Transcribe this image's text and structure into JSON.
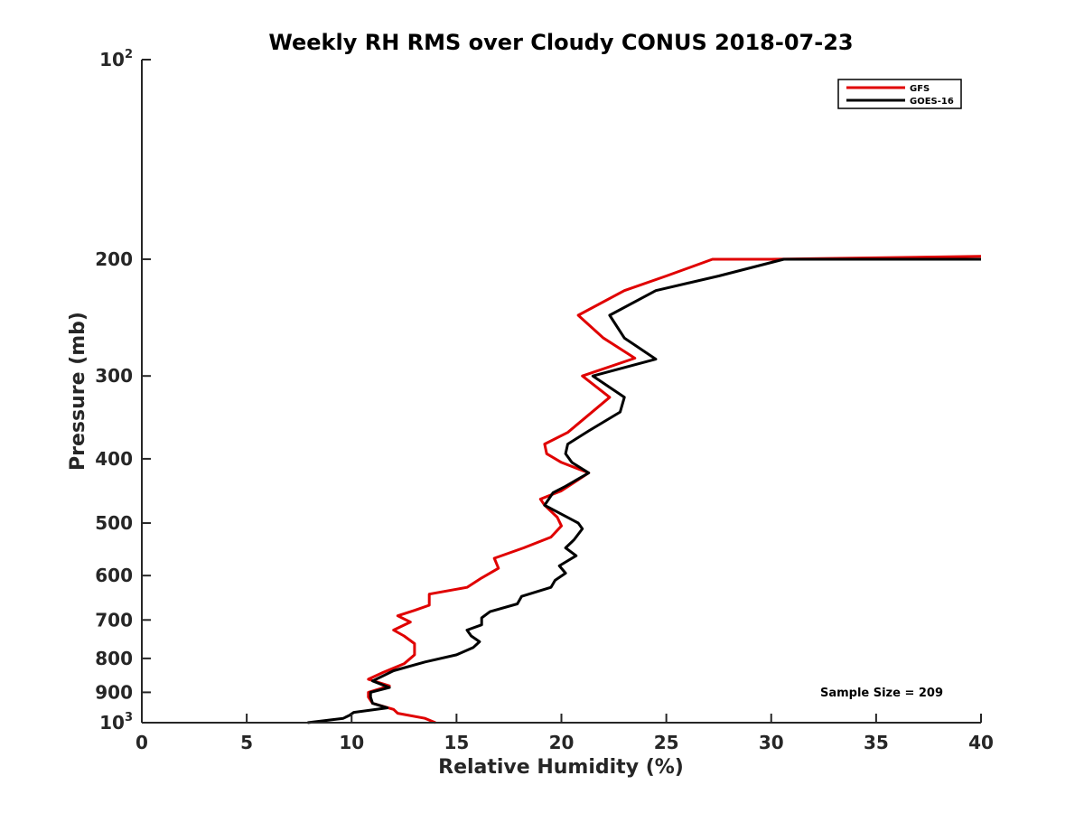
{
  "chart_data": {
    "type": "line",
    "title": "Weekly RH RMS over Cloudy CONUS 2018-07-23",
    "xlabel": "Relative Humidity (%)",
    "ylabel": "Pressure (mb)",
    "xlim": [
      0,
      40
    ],
    "ylim": [
      100,
      1000
    ],
    "y_scale": "log",
    "y_reversed": true,
    "x_ticks": [
      0,
      5,
      10,
      15,
      20,
      25,
      30,
      35,
      40
    ],
    "x_tick_labels": [
      "0",
      "5",
      "10",
      "15",
      "20",
      "25",
      "30",
      "35",
      "40"
    ],
    "y_ticks": [
      {
        "value": 100,
        "label": "10",
        "sup": "2"
      },
      {
        "value": 200,
        "label": "200",
        "sup": ""
      },
      {
        "value": 300,
        "label": "300",
        "sup": ""
      },
      {
        "value": 400,
        "label": "400",
        "sup": ""
      },
      {
        "value": 500,
        "label": "500",
        "sup": ""
      },
      {
        "value": 600,
        "label": "600",
        "sup": ""
      },
      {
        "value": 700,
        "label": "700",
        "sup": ""
      },
      {
        "value": 800,
        "label": "800",
        "sup": ""
      },
      {
        "value": 900,
        "label": "900",
        "sup": ""
      },
      {
        "value": 1000,
        "label": "10",
        "sup": "3"
      }
    ],
    "grid": false,
    "legend_position": "top-right",
    "annotation": "Sample Size = 209",
    "series": [
      {
        "name": "GFS",
        "color": "#e00000",
        "points": [
          [
            14.0,
            1000
          ],
          [
            13.5,
            985
          ],
          [
            12.2,
            968
          ],
          [
            12.0,
            955
          ],
          [
            11.0,
            935
          ],
          [
            10.8,
            915
          ],
          [
            10.8,
            900
          ],
          [
            11.8,
            880
          ],
          [
            10.8,
            860
          ],
          [
            11.5,
            840
          ],
          [
            12.5,
            815
          ],
          [
            13.0,
            790
          ],
          [
            13.0,
            760
          ],
          [
            12.5,
            740
          ],
          [
            12.0,
            725
          ],
          [
            12.8,
            705
          ],
          [
            12.2,
            690
          ],
          [
            13.0,
            677
          ],
          [
            13.7,
            665
          ],
          [
            13.7,
            640
          ],
          [
            15.5,
            625
          ],
          [
            16.2,
            605
          ],
          [
            17.0,
            585
          ],
          [
            16.8,
            565
          ],
          [
            18.2,
            545
          ],
          [
            19.5,
            525
          ],
          [
            20.0,
            505
          ],
          [
            19.8,
            490
          ],
          [
            19.2,
            470
          ],
          [
            19.0,
            460
          ],
          [
            20.0,
            447
          ],
          [
            21.3,
            420
          ],
          [
            20.0,
            405
          ],
          [
            19.3,
            393
          ],
          [
            19.2,
            380
          ],
          [
            20.3,
            365
          ],
          [
            22.3,
            323
          ],
          [
            21.0,
            300
          ],
          [
            23.5,
            282
          ],
          [
            22.0,
            263
          ],
          [
            20.8,
            243
          ],
          [
            23.0,
            223
          ],
          [
            25.0,
            212
          ],
          [
            27.2,
            200
          ],
          [
            30.0,
            200
          ],
          [
            40.0,
            198
          ]
        ]
      },
      {
        "name": "GOES-16",
        "color": "#000000",
        "points": [
          [
            7.9,
            1000
          ],
          [
            9.6,
            985
          ],
          [
            9.9,
            975
          ],
          [
            10.1,
            965
          ],
          [
            11.7,
            950
          ],
          [
            11.0,
            935
          ],
          [
            10.9,
            915
          ],
          [
            10.9,
            900
          ],
          [
            11.8,
            885
          ],
          [
            11.0,
            865
          ],
          [
            12.0,
            835
          ],
          [
            13.5,
            810
          ],
          [
            15.0,
            790
          ],
          [
            15.8,
            770
          ],
          [
            16.1,
            755
          ],
          [
            15.7,
            740
          ],
          [
            15.5,
            725
          ],
          [
            16.2,
            712
          ],
          [
            16.2,
            695
          ],
          [
            16.6,
            680
          ],
          [
            17.9,
            662
          ],
          [
            18.1,
            645
          ],
          [
            19.5,
            625
          ],
          [
            19.7,
            610
          ],
          [
            20.2,
            595
          ],
          [
            19.9,
            580
          ],
          [
            20.7,
            560
          ],
          [
            20.2,
            545
          ],
          [
            20.6,
            530
          ],
          [
            21.0,
            510
          ],
          [
            20.8,
            500
          ],
          [
            19.2,
            470
          ],
          [
            19.6,
            450
          ],
          [
            20.2,
            440
          ],
          [
            21.3,
            420
          ],
          [
            20.5,
            405
          ],
          [
            20.2,
            393
          ],
          [
            20.3,
            380
          ],
          [
            21.3,
            363
          ],
          [
            22.8,
            340
          ],
          [
            23.0,
            323
          ],
          [
            21.5,
            300
          ],
          [
            24.5,
            283
          ],
          [
            23.0,
            263
          ],
          [
            22.3,
            243
          ],
          [
            24.5,
            223
          ],
          [
            27.5,
            212
          ],
          [
            30.6,
            200
          ],
          [
            40.0,
            200
          ]
        ]
      }
    ]
  }
}
